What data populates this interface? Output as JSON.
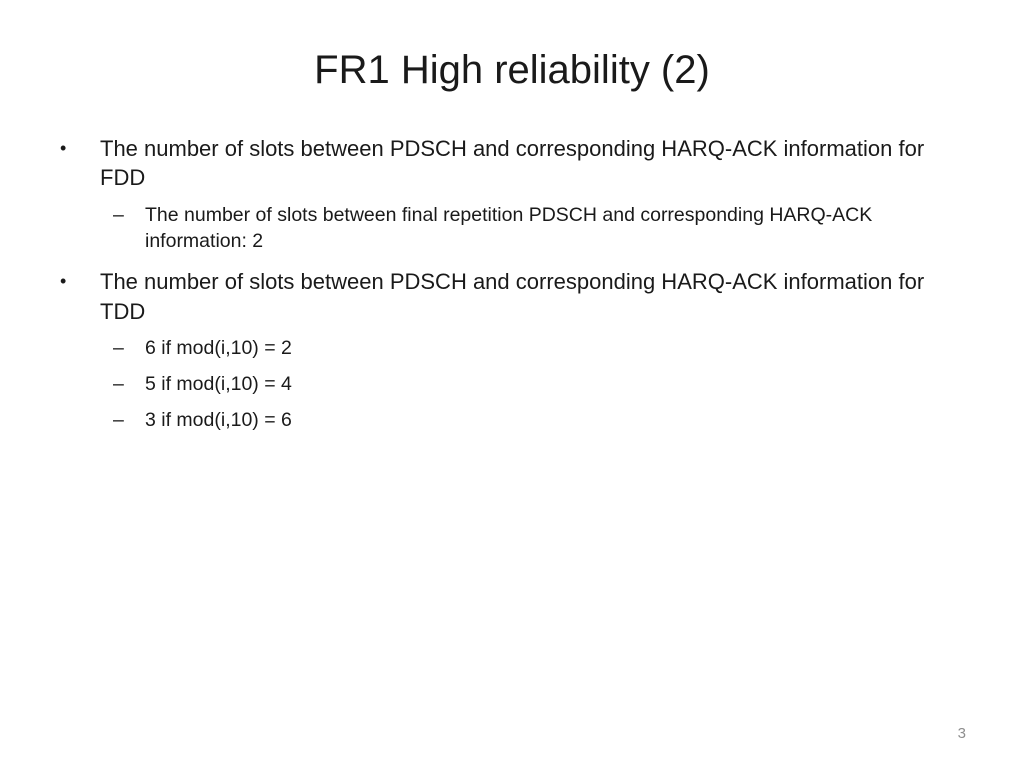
{
  "slide": {
    "title": "FR1 High reliability (2)",
    "bullet_char": "•",
    "dash_char": "–",
    "bullets": [
      {
        "text": "The number of slots between PDSCH and corresponding HARQ-ACK information for FDD",
        "subs": [
          "The number of slots between final repetition PDSCH and corresponding HARQ-ACK information: 2"
        ]
      },
      {
        "text": "The number of slots between PDSCH and corresponding HARQ-ACK information for TDD",
        "subs": [
          "6 if mod(i,10) = 2",
          "5 if mod(i,10) = 4",
          "3 if mod(i,10) = 6"
        ]
      }
    ],
    "page_number": "3"
  }
}
